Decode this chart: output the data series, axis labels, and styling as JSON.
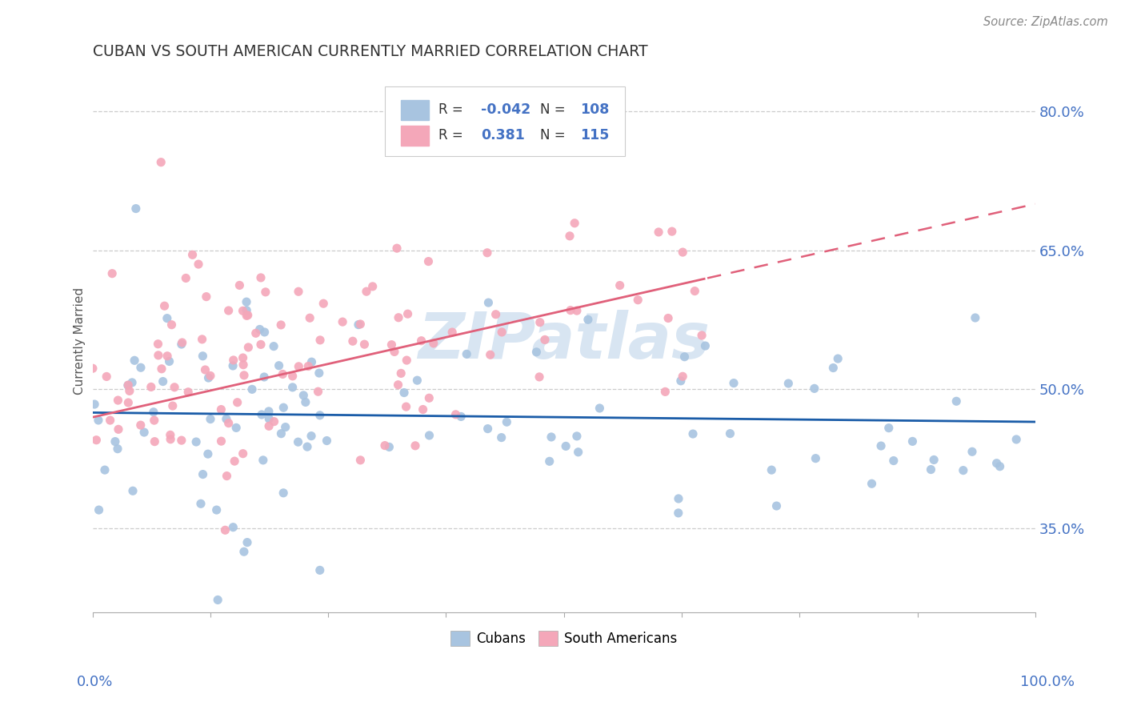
{
  "title": "CUBAN VS SOUTH AMERICAN CURRENTLY MARRIED CORRELATION CHART",
  "source": "Source: ZipAtlas.com",
  "ylabel": "Currently Married",
  "yticks": [
    0.35,
    0.5,
    0.65,
    0.8
  ],
  "ytick_labels": [
    "35.0%",
    "50.0%",
    "65.0%",
    "80.0%"
  ],
  "xlim": [
    0.0,
    1.0
  ],
  "ylim": [
    0.26,
    0.845
  ],
  "cubans_R": -0.042,
  "cubans_N": 108,
  "south_americans_R": 0.381,
  "south_americans_N": 115,
  "cubans_color": "#a8c4e0",
  "cubans_line_color": "#1a5ca8",
  "south_americans_color": "#f4a7b9",
  "south_americans_line_color": "#e0607a",
  "background_color": "#ffffff",
  "grid_color": "#cccccc",
  "title_color": "#333333",
  "axis_label_color": "#4472c4",
  "watermark_color": "#b8d0e8",
  "legend_box_color": "#cccccc",
  "legend_R_color": "#4472c4",
  "legend_R_value_cuban": "-0.042",
  "legend_N_cuban": "108",
  "legend_R_value_sa": "0.381",
  "legend_N_sa": "115",
  "cuban_label": "Cubans",
  "sa_label": "South Americans"
}
